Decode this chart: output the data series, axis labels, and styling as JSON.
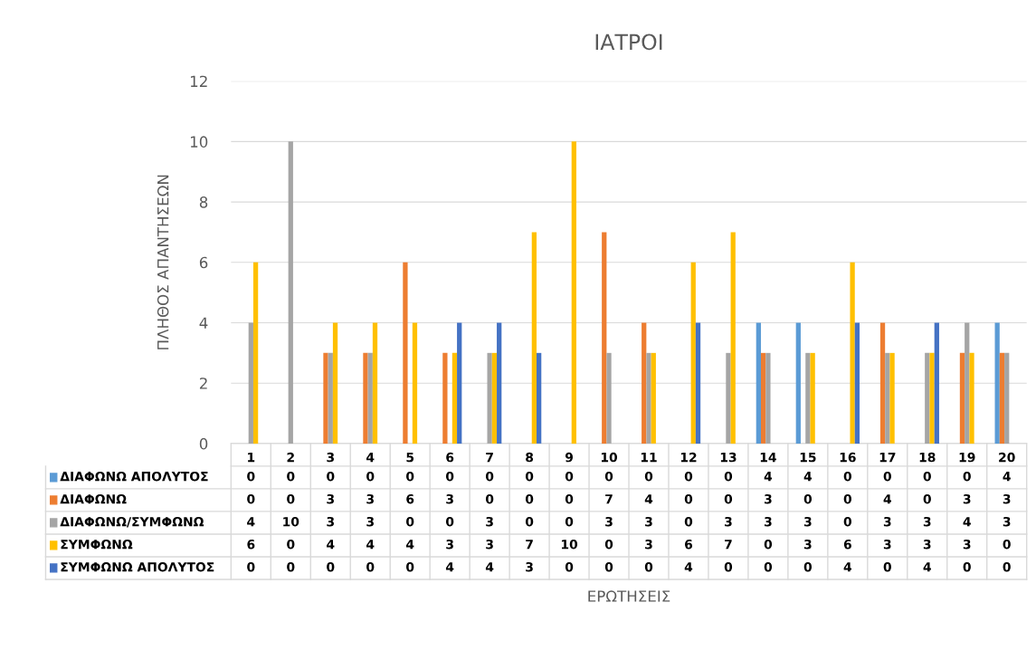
{
  "chart_data": {
    "type": "bar",
    "title": "ΙΑΤΡΟΙ",
    "annotations": [
      "ΕΡΩΤΗΣΕΙΣ"
    ],
    "ylabel": "ΠΛΗΘΟΣ ΑΠΑΝΤΗΣΕΩΝ",
    "categories": [
      "1",
      "2",
      "3",
      "4",
      "5",
      "6",
      "7",
      "8",
      "9",
      "10",
      "11",
      "12",
      "13",
      "14",
      "15",
      "16",
      "17",
      "18",
      "19",
      "20"
    ],
    "series": [
      {
        "name": "ΔΙΑΦΩΝΩ ΑΠΟΛΥΤΟΣ",
        "color": "#5b9bd5",
        "values": [
          0,
          0,
          0,
          0,
          0,
          0,
          0,
          0,
          0,
          0,
          0,
          0,
          0,
          4,
          4,
          0,
          0,
          0,
          0,
          4
        ]
      },
      {
        "name": "ΔΙΑΦΩΝΩ",
        "color": "#ed7d31",
        "values": [
          0,
          0,
          3,
          3,
          6,
          3,
          0,
          0,
          0,
          7,
          4,
          0,
          0,
          3,
          0,
          0,
          4,
          0,
          3,
          3
        ]
      },
      {
        "name": "ΔΙΑΦΩΝΩ/ΣΥΜΦΩΝΩ",
        "color": "#a5a5a5",
        "values": [
          4,
          10,
          3,
          3,
          0,
          0,
          3,
          0,
          0,
          3,
          3,
          0,
          3,
          3,
          3,
          0,
          3,
          3,
          4,
          3
        ]
      },
      {
        "name": "ΣΥΜΦΩΝΩ",
        "color": "#ffc000",
        "values": [
          6,
          0,
          4,
          4,
          4,
          3,
          3,
          7,
          10,
          0,
          3,
          6,
          7,
          0,
          3,
          6,
          3,
          3,
          3,
          0
        ]
      },
      {
        "name": "ΣΥΜΦΩΝΩ ΑΠΟΛΥΤΟΣ",
        "color": "#4472c4",
        "values": [
          0,
          0,
          0,
          0,
          0,
          4,
          4,
          3,
          0,
          0,
          0,
          4,
          0,
          0,
          0,
          4,
          0,
          4,
          0,
          0
        ]
      }
    ],
    "ylim": [
      0,
      12
    ],
    "yticks": [
      0,
      2,
      4,
      6,
      8,
      10,
      12
    ],
    "grid": "y",
    "data_labels": true,
    "legend": "bottom left"
  }
}
